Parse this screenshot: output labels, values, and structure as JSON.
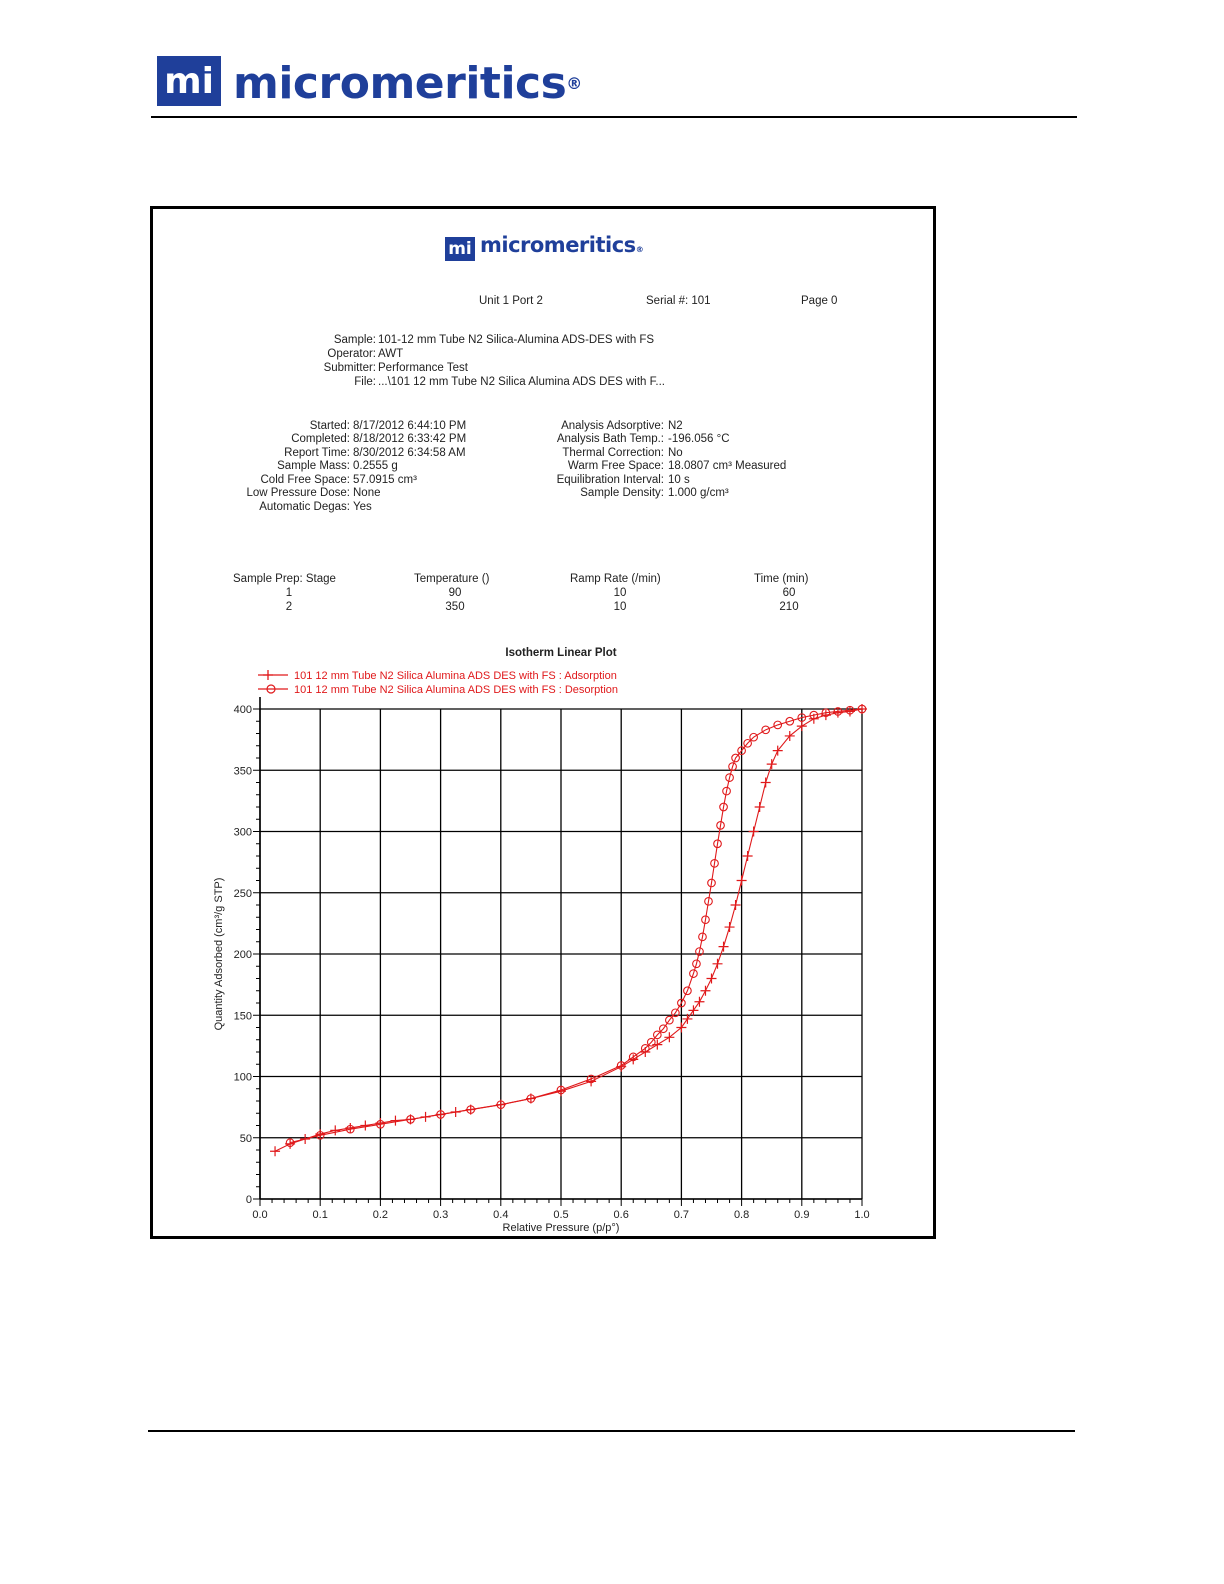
{
  "header": {
    "logo_text": "micromeritics",
    "logo_mark": "mi",
    "logo_reg": "®"
  },
  "report": {
    "logo_text": "micromeritics",
    "logo_mark": "mi",
    "logo_reg": "®",
    "unit_port": "Unit 1 Port 2",
    "serial": "Serial #: 101",
    "page": "Page 0",
    "sample_info": [
      {
        "label": "Sample:",
        "value": "101-12 mm Tube N2 Silica-Alumina ADS-DES with FS"
      },
      {
        "label": "Operator:",
        "value": "AWT"
      },
      {
        "label": "Submitter:",
        "value": "Performance Test"
      },
      {
        "label": "File:",
        "value": "...\\101 12 mm Tube N2 Silica Alumina ADS DES with F..."
      }
    ],
    "run_info_left": [
      {
        "label": "Started:",
        "value": "8/17/2012 6:44:10 PM"
      },
      {
        "label": "Completed:",
        "value": "8/18/2012 6:33:42 PM"
      },
      {
        "label": "Report Time:",
        "value": "8/30/2012 6:34:58 AM"
      },
      {
        "label": "Sample Mass:",
        "value": "0.2555 g"
      },
      {
        "label": "Cold Free Space:",
        "value": "57.0915 cm³"
      },
      {
        "label": "Low Pressure Dose:",
        "value": "None"
      },
      {
        "label": "Automatic Degas:",
        "value": "Yes"
      }
    ],
    "run_info_right": [
      {
        "label": "Analysis Adsorptive:",
        "value": "N2"
      },
      {
        "label": "Analysis Bath Temp.:",
        "value": "-196.056 °C"
      },
      {
        "label": "Thermal Correction:",
        "value": "No"
      },
      {
        "label": "Warm Free Space:",
        "value": "18.0807 cm³ Measured"
      },
      {
        "label": "Equilibration Interval:",
        "value": "10 s"
      },
      {
        "label": "Sample Density:",
        "value": "1.000 g/cm³"
      }
    ],
    "prep_table": {
      "headers": [
        "Sample Prep: Stage",
        "Temperature ()",
        "Ramp Rate (/min)",
        "Time (min)"
      ],
      "rows": [
        [
          "1",
          "90",
          "10",
          "60"
        ],
        [
          "2",
          "350",
          "10",
          "210"
        ]
      ]
    }
  },
  "chart_data": {
    "type": "line",
    "title": "Isotherm Linear Plot",
    "xlabel": "Relative Pressure (p/p°)",
    "ylabel": "Quantity Adsorbed (cm³/g STP)",
    "xlim": [
      0.0,
      1.0
    ],
    "ylim": [
      0,
      400
    ],
    "x_ticks": [
      "0.0",
      "0.1",
      "0.2",
      "0.3",
      "0.4",
      "0.5",
      "0.6",
      "0.7",
      "0.8",
      "0.9",
      "1.0"
    ],
    "y_ticks": [
      "0",
      "50",
      "100",
      "150",
      "200",
      "250",
      "300",
      "350",
      "400"
    ],
    "grid": true,
    "legend_position": "top-left",
    "series_color": "#e0191b",
    "series": [
      {
        "name": "101 12 mm Tube N2 Silica Alumina ADS DES with FS : Adsorption",
        "marker": "plus",
        "x": [
          0.025,
          0.05,
          0.075,
          0.1,
          0.125,
          0.15,
          0.175,
          0.2,
          0.225,
          0.25,
          0.275,
          0.3,
          0.325,
          0.35,
          0.4,
          0.45,
          0.5,
          0.55,
          0.6,
          0.62,
          0.64,
          0.66,
          0.68,
          0.7,
          0.71,
          0.72,
          0.73,
          0.74,
          0.75,
          0.76,
          0.77,
          0.78,
          0.79,
          0.8,
          0.81,
          0.82,
          0.83,
          0.84,
          0.85,
          0.86,
          0.88,
          0.9,
          0.92,
          0.94,
          0.96,
          0.98,
          1.0
        ],
        "y": [
          39,
          45,
          49,
          53,
          56,
          58,
          60,
          62,
          64,
          65,
          67,
          69,
          71,
          73,
          77,
          82,
          88,
          96,
          108,
          114,
          120,
          126,
          132,
          140,
          147,
          154,
          161,
          170,
          180,
          192,
          206,
          222,
          240,
          260,
          280,
          300,
          320,
          340,
          355,
          366,
          378,
          386,
          392,
          395,
          397,
          398,
          400
        ]
      },
      {
        "name": "101 12 mm Tube N2 Silica Alumina ADS DES with FS : Desorption",
        "marker": "circle",
        "x": [
          1.0,
          0.98,
          0.96,
          0.94,
          0.92,
          0.9,
          0.88,
          0.86,
          0.84,
          0.82,
          0.81,
          0.8,
          0.79,
          0.785,
          0.78,
          0.775,
          0.77,
          0.765,
          0.76,
          0.755,
          0.75,
          0.745,
          0.74,
          0.735,
          0.73,
          0.725,
          0.72,
          0.71,
          0.7,
          0.69,
          0.68,
          0.67,
          0.66,
          0.65,
          0.64,
          0.62,
          0.6,
          0.55,
          0.5,
          0.45,
          0.4,
          0.35,
          0.3,
          0.25,
          0.2,
          0.15,
          0.1,
          0.05
        ],
        "y": [
          400,
          399,
          398,
          397,
          395,
          393,
          390,
          387,
          383,
          377,
          372,
          366,
          360,
          353,
          344,
          333,
          320,
          305,
          290,
          274,
          258,
          243,
          228,
          214,
          202,
          192,
          184,
          170,
          160,
          152,
          146,
          139,
          134,
          128,
          123,
          116,
          109,
          98,
          89,
          82,
          77,
          73,
          69,
          65,
          61,
          57,
          52,
          46
        ]
      }
    ]
  }
}
